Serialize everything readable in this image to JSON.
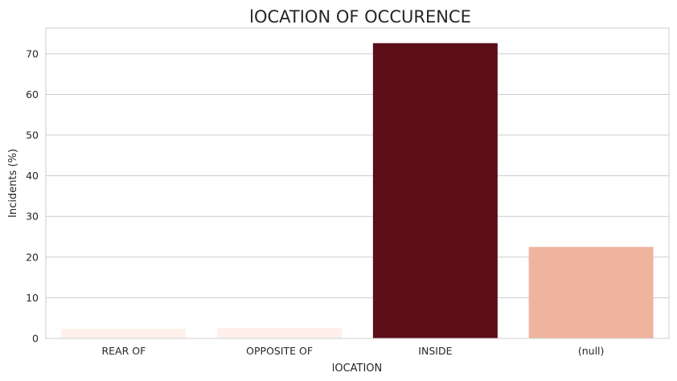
{
  "chart_data": {
    "type": "bar",
    "title": "lOCATION OF OCCURENCE",
    "xlabel": "lOCATION",
    "ylabel": "Incidents (%)",
    "categories": [
      "REAR OF",
      "OPPOSITE OF",
      "INSIDE",
      "(null)"
    ],
    "values": [
      2.3,
      2.6,
      72.6,
      22.5
    ],
    "ylim": [
      0,
      76.3
    ],
    "yticks": [
      0,
      10,
      20,
      30,
      40,
      50,
      60,
      70
    ],
    "grid": true,
    "bar_colors": [
      "#fff0eb",
      "#fff0eb",
      "#5c0e18",
      "#f0b49e"
    ],
    "grid_color": "#cccccc",
    "background": "#ffffff"
  }
}
